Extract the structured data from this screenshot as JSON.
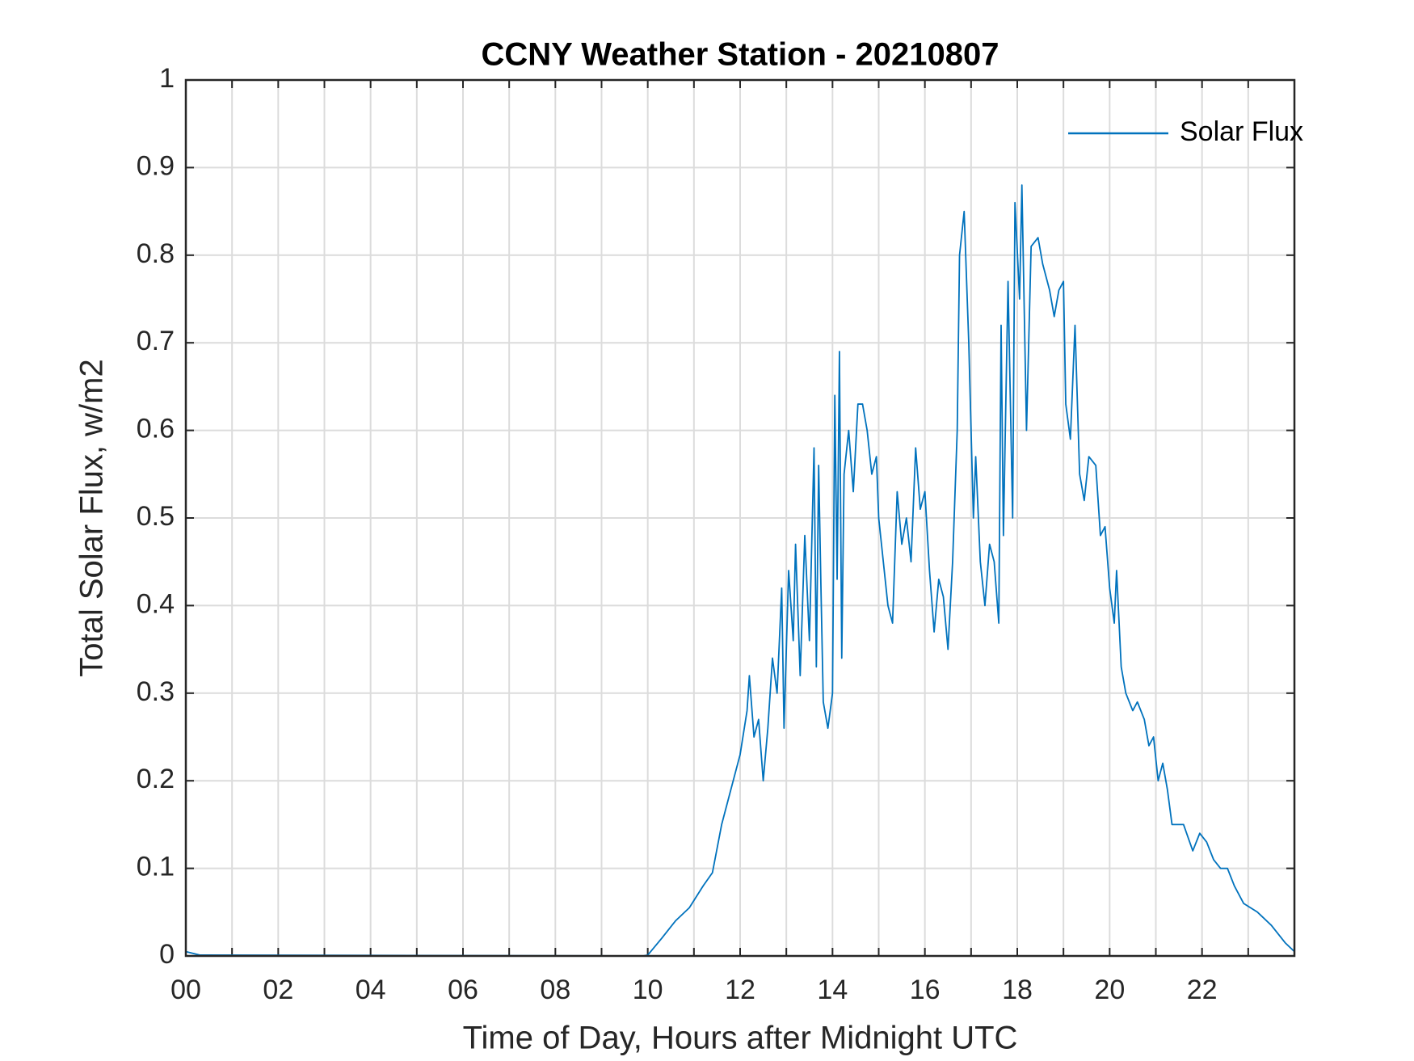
{
  "chart_data": {
    "type": "line",
    "title": "CCNY Weather Station - 20210807",
    "xlabel": "Time of Day, Hours after Midnight UTC",
    "ylabel": "Total Solar Flux, w/m2",
    "xlim": [
      0,
      24
    ],
    "ylim": [
      0,
      1
    ],
    "xticks": [
      {
        "value": 0,
        "label": "00"
      },
      {
        "value": 2,
        "label": "02"
      },
      {
        "value": 4,
        "label": "04"
      },
      {
        "value": 6,
        "label": "06"
      },
      {
        "value": 8,
        "label": "08"
      },
      10,
      12,
      14,
      16,
      18,
      20,
      22
    ],
    "xminorticks": [
      1,
      3,
      5,
      7,
      9,
      11,
      13,
      15,
      17,
      19,
      21,
      23
    ],
    "yticks": [
      0,
      0.1,
      0.2,
      0.3,
      0.4,
      0.5,
      0.6,
      0.7,
      0.8,
      0.9,
      1
    ],
    "grid": true,
    "legend": "northeast",
    "x": [
      0,
      0.3,
      9.9,
      10,
      10.3,
      10.6,
      10.9,
      11.2,
      11.4,
      11.6,
      11.8,
      12.0,
      12.15,
      12.2,
      12.3,
      12.4,
      12.5,
      12.6,
      12.7,
      12.8,
      12.9,
      12.95,
      13.05,
      13.15,
      13.2,
      13.3,
      13.4,
      13.5,
      13.6,
      13.65,
      13.7,
      13.75,
      13.8,
      13.9,
      14.0,
      14.05,
      14.1,
      14.15,
      14.2,
      14.25,
      14.35,
      14.45,
      14.55,
      14.65,
      14.75,
      14.85,
      14.95,
      15.0,
      15.1,
      15.2,
      15.3,
      15.4,
      15.5,
      15.6,
      15.7,
      15.8,
      15.9,
      16.0,
      16.1,
      16.2,
      16.3,
      16.4,
      16.5,
      16.6,
      16.7,
      16.75,
      16.85,
      16.95,
      17.05,
      17.1,
      17.2,
      17.3,
      17.4,
      17.5,
      17.6,
      17.65,
      17.7,
      17.8,
      17.9,
      17.95,
      18.05,
      18.1,
      18.2,
      18.3,
      18.45,
      18.55,
      18.7,
      18.8,
      18.9,
      19.0,
      19.05,
      19.15,
      19.25,
      19.35,
      19.45,
      19.55,
      19.7,
      19.8,
      19.9,
      20.0,
      20.1,
      20.15,
      20.25,
      20.35,
      20.5,
      20.6,
      20.75,
      20.85,
      20.95,
      21.05,
      21.15,
      21.25,
      21.35,
      21.6,
      21.8,
      21.95,
      22.1,
      22.25,
      22.4,
      22.55,
      22.7,
      22.9,
      23.2,
      23.5,
      23.8,
      24.0
    ],
    "series": [
      {
        "name": "Solar Flux",
        "color": "#0072bd",
        "values": [
          0.005,
          0.001,
          0,
          0.001,
          0.02,
          0.04,
          0.055,
          0.08,
          0.095,
          0.15,
          0.19,
          0.23,
          0.28,
          0.32,
          0.25,
          0.27,
          0.2,
          0.26,
          0.34,
          0.3,
          0.42,
          0.26,
          0.44,
          0.36,
          0.47,
          0.32,
          0.48,
          0.36,
          0.58,
          0.33,
          0.56,
          0.42,
          0.29,
          0.26,
          0.3,
          0.64,
          0.43,
          0.69,
          0.34,
          0.55,
          0.6,
          0.53,
          0.63,
          0.63,
          0.6,
          0.55,
          0.57,
          0.5,
          0.45,
          0.4,
          0.38,
          0.53,
          0.47,
          0.5,
          0.45,
          0.58,
          0.51,
          0.53,
          0.44,
          0.37,
          0.43,
          0.41,
          0.35,
          0.45,
          0.6,
          0.8,
          0.85,
          0.7,
          0.5,
          0.57,
          0.45,
          0.4,
          0.47,
          0.45,
          0.38,
          0.72,
          0.48,
          0.77,
          0.5,
          0.86,
          0.75,
          0.88,
          0.6,
          0.81,
          0.82,
          0.79,
          0.76,
          0.73,
          0.76,
          0.77,
          0.63,
          0.59,
          0.72,
          0.55,
          0.52,
          0.57,
          0.56,
          0.48,
          0.49,
          0.42,
          0.38,
          0.44,
          0.33,
          0.3,
          0.28,
          0.29,
          0.27,
          0.24,
          0.25,
          0.2,
          0.22,
          0.19,
          0.15,
          0.15,
          0.12,
          0.14,
          0.13,
          0.11,
          0.1,
          0.1,
          0.08,
          0.06,
          0.05,
          0.035,
          0.015,
          0.005
        ]
      }
    ]
  }
}
